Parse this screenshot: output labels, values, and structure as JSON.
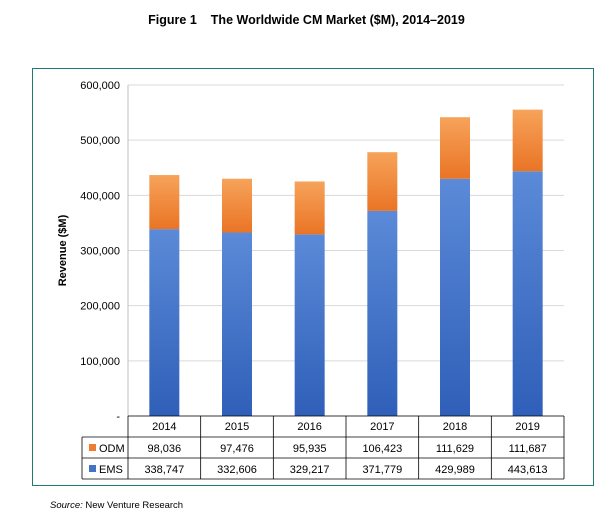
{
  "figure": {
    "label": "Figure 1",
    "title": "The Worldwide CM Market ($M), 2014–2019"
  },
  "source": {
    "label": "Source:",
    "text": "New Venture Research"
  },
  "colors": {
    "odm": "#ED7D31",
    "ems": "#4472C4",
    "frame": "#1e7b75",
    "grid": "#d9d9d9"
  },
  "chart_data": {
    "type": "bar",
    "stacked": true,
    "title": "",
    "xlabel": "",
    "ylabel": "Revenue ($M)",
    "ylim": [
      0,
      600000
    ],
    "yticks": [
      0,
      100000,
      200000,
      300000,
      400000,
      500000,
      600000
    ],
    "ytick_labels": [
      "-",
      "100,000",
      "200,000",
      "300,000",
      "400,000",
      "500,000",
      "600,000"
    ],
    "grid": true,
    "legend": "data-table",
    "categories": [
      "2014",
      "2015",
      "2016",
      "2017",
      "2018",
      "2019"
    ],
    "series": [
      {
        "name": "ODM",
        "values": [
          98036,
          97476,
          95935,
          106423,
          111629,
          111687
        ],
        "labels": [
          "98,036",
          "97,476",
          "95,935",
          "106,423",
          "111,629",
          "111,687"
        ]
      },
      {
        "name": "EMS",
        "values": [
          338747,
          332606,
          329217,
          371779,
          429989,
          443613
        ],
        "labels": [
          "338,747",
          "332,606",
          "329,217",
          "371,779",
          "429,989",
          "443,613"
        ]
      }
    ]
  }
}
